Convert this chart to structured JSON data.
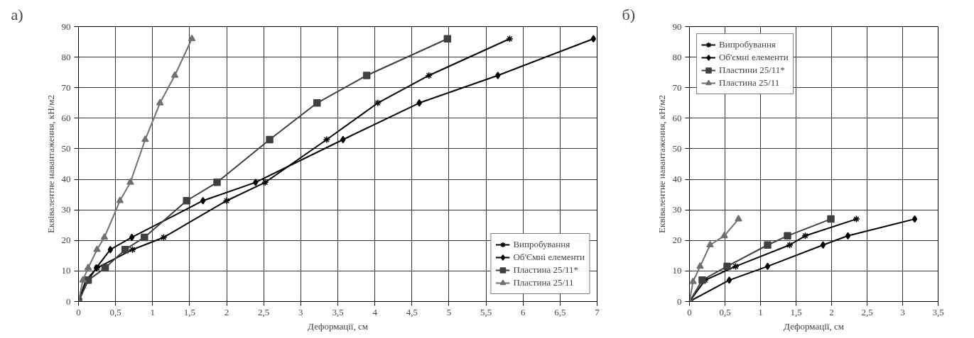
{
  "chart_data": [
    {
      "type": "line",
      "xlabel": "Деформації, см",
      "ylabel": "Еквівалентне навантаження, кН/м2",
      "annotations": [
        "а)"
      ],
      "xlim": [
        0,
        7
      ],
      "ylim": [
        0,
        90
      ],
      "xticks": [
        0,
        {
          "value": 0.5,
          "label": "0,5"
        },
        1,
        {
          "value": 1.5,
          "label": "1,5"
        },
        2,
        {
          "value": 2.5,
          "label": "2,5"
        },
        3,
        {
          "value": 3.5,
          "label": "3,5"
        },
        4,
        {
          "value": 4.5,
          "label": "4,5"
        },
        5,
        {
          "value": 5.5,
          "label": "5,5"
        },
        6,
        {
          "value": 6.5,
          "label": "6,5"
        },
        7
      ],
      "yticks": [
        0,
        10,
        20,
        30,
        40,
        50,
        60,
        70,
        80,
        90
      ],
      "grid": true,
      "legend": "bottom right",
      "line_style": "solid",
      "series": [
        {
          "name": "Випробування",
          "color": "#000000",
          "marker": "cross",
          "x": [
            0,
            0.1,
            0.25,
            0.73,
            1.15,
            2.0,
            2.52,
            3.35,
            4.04,
            4.73,
            5.82
          ],
          "values": [
            0,
            7,
            11,
            17,
            21,
            33,
            39,
            53,
            65,
            74,
            86
          ]
        },
        {
          "name": "Об'Ємні елементи",
          "color": "#000000",
          "marker": "diamond",
          "x": [
            0,
            0.13,
            0.24,
            0.43,
            0.72,
            1.68,
            2.39,
            3.57,
            4.6,
            5.66,
            6.95
          ],
          "values": [
            0,
            7,
            11,
            17,
            21,
            33,
            39,
            53,
            65,
            74,
            86
          ]
        },
        {
          "name": "Пластина 25/11*",
          "color": "#404040",
          "marker": "square",
          "x": [
            0,
            0.13,
            0.36,
            0.63,
            0.89,
            1.46,
            1.87,
            2.58,
            3.22,
            3.89,
            4.98
          ],
          "values": [
            0,
            7,
            11,
            17,
            21,
            33,
            39,
            53,
            65,
            74,
            86
          ]
        },
        {
          "name": "Пластина 25/11",
          "color": "#707070",
          "marker": "triangle",
          "x": [
            0,
            0.06,
            0.13,
            0.25,
            0.35,
            0.56,
            0.7,
            0.9,
            1.1,
            1.3,
            1.53
          ],
          "values": [
            0,
            7,
            11,
            17,
            21,
            33,
            39,
            53,
            65,
            74,
            86
          ]
        }
      ]
    },
    {
      "type": "line",
      "xlabel": "Деформації, см",
      "ylabel": "Еквівалентне навантаження, кН/м2",
      "annotations": [
        "б)"
      ],
      "xlim": [
        0,
        3.5
      ],
      "ylim": [
        0,
        90
      ],
      "xticks": [
        0,
        {
          "value": 0.5,
          "label": "0,5"
        },
        1,
        {
          "value": 1.5,
          "label": "1,5"
        },
        2,
        {
          "value": 2.5,
          "label": "2,5"
        },
        3,
        {
          "value": 3.5,
          "label": "3,5"
        }
      ],
      "yticks": [
        0,
        10,
        20,
        30,
        40,
        50,
        60,
        70,
        80,
        90
      ],
      "grid": true,
      "legend": "top left",
      "line_style": "solid",
      "series": [
        {
          "name": "Випробування",
          "color": "#000000",
          "marker": "cross",
          "x": [
            0,
            0.22,
            0.65,
            1.41,
            1.63,
            2.35
          ],
          "values": [
            0,
            7,
            11.5,
            18.5,
            21.5,
            27
          ]
        },
        {
          "name": "Об'ємні елементи",
          "color": "#000000",
          "marker": "diamond",
          "x": [
            0,
            0.56,
            1.1,
            1.88,
            2.23,
            3.17
          ],
          "values": [
            0,
            7,
            11.5,
            18.5,
            21.5,
            27
          ]
        },
        {
          "name": "Пластини 25/11*",
          "color": "#404040",
          "marker": "square",
          "x": [
            0,
            0.18,
            0.53,
            1.1,
            1.38,
            1.99
          ],
          "values": [
            0,
            7,
            11.5,
            18.5,
            21.5,
            27
          ]
        },
        {
          "name": "Пластина 25/11",
          "color": "#707070",
          "marker": "triangle",
          "x": [
            0,
            0.05,
            0.15,
            0.29,
            0.49,
            0.69
          ],
          "values": [
            0,
            6.5,
            11.5,
            18.5,
            21.5,
            27
          ]
        }
      ]
    }
  ]
}
